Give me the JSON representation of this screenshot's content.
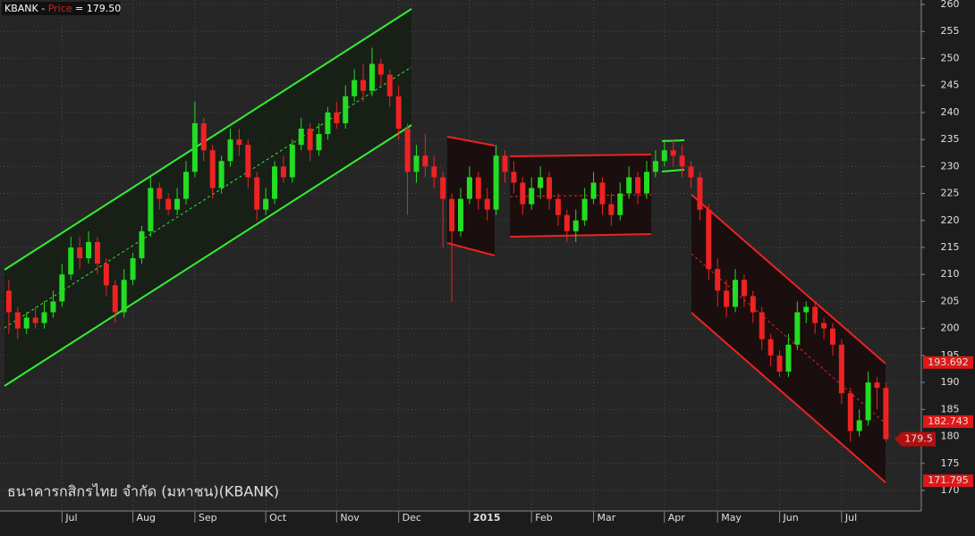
{
  "chart_data": {
    "type": "candlestick",
    "title_parts": [
      "KBANK - ",
      "Price",
      " = 179.50"
    ],
    "name": "ธนาคารกสิกรไทย จำกัด (มหาชน)(KBANK)",
    "up_color": "#22dd22",
    "down_color": "#ee2222",
    "xlim": [
      0,
      104
    ],
    "ylim": [
      169,
      261
    ],
    "yticks": [
      170,
      175,
      180,
      185,
      190,
      195,
      200,
      205,
      210,
      215,
      220,
      225,
      230,
      235,
      240,
      245,
      250,
      255,
      260
    ],
    "xticks": [
      {
        "value": 7,
        "label": "Jul"
      },
      {
        "value": 15,
        "label": "Aug"
      },
      {
        "value": 22,
        "label": "Sep"
      },
      {
        "value": 30,
        "label": "Oct"
      },
      {
        "value": 38,
        "label": "Nov"
      },
      {
        "value": 45,
        "label": "Dec"
      },
      {
        "value": 53,
        "label": "2015"
      },
      {
        "value": 60,
        "label": "Feb"
      },
      {
        "value": 67,
        "label": "Mar"
      },
      {
        "value": 75,
        "label": "Apr"
      },
      {
        "value": 81,
        "label": "May"
      },
      {
        "value": 88,
        "label": "Jun"
      },
      {
        "value": 95,
        "label": "Jul"
      }
    ],
    "grid": true,
    "price_markers": [
      193.692,
      182.743,
      171.795
    ],
    "last_price": 179.5,
    "x": [
      1,
      2,
      3,
      4,
      5,
      6,
      7,
      8,
      9,
      10,
      11,
      12,
      13,
      14,
      15,
      16,
      17,
      18,
      19,
      20,
      21,
      22,
      23,
      24,
      25,
      26,
      27,
      28,
      29,
      30,
      31,
      32,
      33,
      34,
      35,
      36,
      37,
      38,
      39,
      40,
      41,
      42,
      43,
      44,
      45,
      46,
      47,
      48,
      49,
      50,
      51,
      52,
      53,
      54,
      55,
      56,
      57,
      58,
      59,
      60,
      61,
      62,
      63,
      64,
      65,
      66,
      67,
      68,
      69,
      70,
      71,
      72,
      73,
      74,
      75,
      76,
      77,
      78,
      79,
      80,
      81,
      82,
      83,
      84,
      85,
      86,
      87,
      88,
      89,
      90,
      91,
      92,
      93,
      94,
      95,
      96,
      97,
      98,
      99,
      100
    ],
    "open": [
      207,
      203,
      200,
      202,
      201,
      203,
      205,
      210,
      215,
      213,
      216,
      212,
      208,
      203,
      209,
      213,
      218,
      226,
      224,
      222,
      224,
      229,
      238,
      233,
      226,
      231,
      235,
      234,
      228,
      222,
      224,
      230,
      228,
      234,
      237,
      233,
      236,
      240,
      238,
      243,
      246,
      244,
      249,
      247,
      243,
      237,
      229,
      232,
      230,
      228,
      224,
      218,
      224,
      228,
      224,
      222,
      232,
      229,
      227,
      223,
      226,
      228,
      224,
      221,
      218,
      220,
      224,
      227,
      223,
      221,
      225,
      228,
      225,
      229,
      231,
      233,
      232,
      230,
      228,
      222,
      211,
      207,
      204,
      209,
      206,
      203,
      198,
      195,
      192,
      197,
      203,
      204,
      201,
      200,
      197,
      188,
      181,
      183,
      190,
      189
    ],
    "high": [
      209,
      204,
      203,
      204,
      205,
      207,
      212,
      217,
      217,
      218,
      217,
      213,
      209,
      211,
      214,
      219,
      228,
      227,
      225,
      226,
      231,
      242,
      239,
      234,
      232,
      237,
      237,
      235,
      229,
      226,
      231,
      232,
      235,
      239,
      238,
      238,
      241,
      242,
      245,
      248,
      249,
      252,
      250,
      248,
      245,
      238,
      234,
      236,
      232,
      229,
      225,
      226,
      230,
      229,
      226,
      234,
      233,
      231,
      228,
      228,
      230,
      229,
      225,
      222,
      222,
      226,
      229,
      228,
      225,
      227,
      230,
      229,
      231,
      233,
      235,
      235,
      234,
      231,
      229,
      223,
      213,
      209,
      211,
      210,
      207,
      204,
      199,
      196,
      199,
      205,
      205,
      205,
      202,
      201,
      198,
      189,
      185,
      192,
      191,
      190
    ],
    "low": [
      199,
      198,
      199,
      200,
      200,
      202,
      204,
      209,
      211,
      212,
      210,
      206,
      201,
      202,
      208,
      212,
      217,
      222,
      221,
      221,
      223,
      228,
      231,
      224,
      225,
      230,
      232,
      226,
      220,
      221,
      223,
      227,
      227,
      233,
      231,
      232,
      235,
      237,
      237,
      242,
      242,
      243,
      245,
      241,
      235,
      221,
      227,
      228,
      226,
      215,
      205,
      217,
      223,
      222,
      220,
      221,
      227,
      225,
      221,
      222,
      224,
      222,
      219,
      216,
      216,
      219,
      223,
      221,
      219,
      220,
      224,
      223,
      224,
      228,
      230,
      230,
      228,
      226,
      220,
      209,
      204,
      202,
      203,
      204,
      201,
      196,
      193,
      191,
      191,
      196,
      201,
      199,
      198,
      195,
      186,
      179,
      180,
      182,
      185,
      179
    ],
    "close": [
      203,
      200,
      202,
      201,
      203,
      205,
      210,
      215,
      213,
      216,
      212,
      208,
      203,
      209,
      213,
      218,
      226,
      224,
      222,
      224,
      229,
      238,
      233,
      226,
      231,
      235,
      234,
      228,
      222,
      224,
      230,
      228,
      234,
      237,
      233,
      236,
      240,
      238,
      243,
      246,
      244,
      249,
      247,
      243,
      237,
      229,
      232,
      230,
      228,
      224,
      218,
      224,
      228,
      224,
      222,
      232,
      229,
      227,
      223,
      226,
      228,
      224,
      221,
      218,
      220,
      224,
      227,
      223,
      221,
      225,
      228,
      225,
      229,
      231,
      233,
      232,
      230,
      228,
      222,
      211,
      207,
      204,
      209,
      206,
      203,
      198,
      195,
      192,
      197,
      203,
      204,
      201,
      200,
      197,
      188,
      181,
      183,
      190,
      189,
      179.5
    ]
  }
}
